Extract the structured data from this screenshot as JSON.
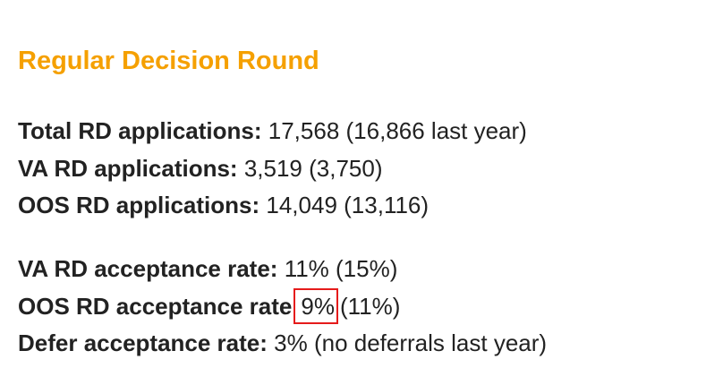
{
  "heading": "Regular Decision Round",
  "groups": [
    [
      {
        "label": "Total RD applications:",
        "value": "17,568 (16,866 last year)"
      },
      {
        "label": "VA RD applications:",
        "value": "3,519 (3,750)"
      },
      {
        "label": "OOS RD applications:",
        "value": "14,049 (13,116)"
      }
    ],
    [
      {
        "label": "VA RD acceptance rate:",
        "value": "11% (15%)"
      },
      {
        "label": "OOS RD acceptance rate",
        "highlight": "9%",
        "value": "(11%)"
      },
      {
        "label": "Defer acceptance rate:",
        "value": "3% (no deferrals last year)"
      }
    ]
  ]
}
